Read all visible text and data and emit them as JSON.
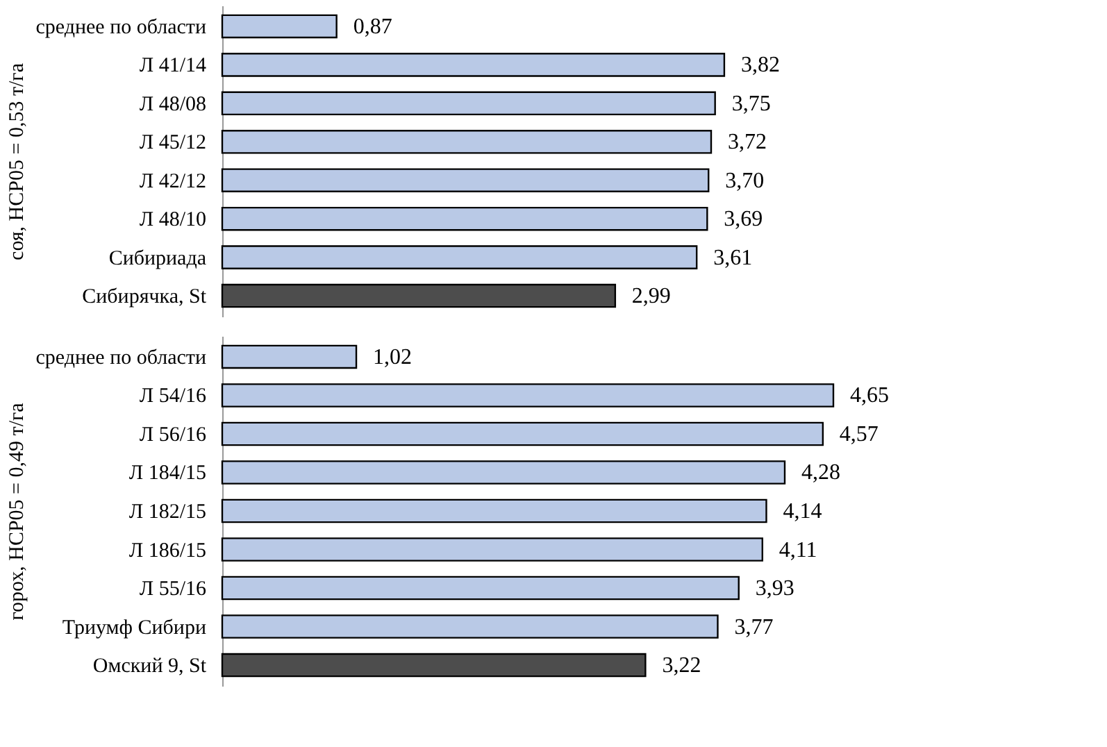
{
  "chart_data": [
    {
      "type": "bar",
      "orientation": "horizontal",
      "ylabel": "соя, НСР05 = 0,53 т/га",
      "categories": [
        "среднее по области",
        "Л  41/14",
        "Л 48/08",
        "Л 45/12",
        "Л 42/12",
        "Л 48/10",
        "Сибириада",
        "Сибирячка, St"
      ],
      "values": [
        0.87,
        3.82,
        3.75,
        3.72,
        3.7,
        3.69,
        3.61,
        2.99
      ],
      "value_labels": [
        "0,87",
        "3,82",
        "3,75",
        "3,72",
        "3,70",
        "3,69",
        "3,61",
        "2,99"
      ],
      "colors": [
        "#b9c9e6",
        "#b9c9e6",
        "#b9c9e6",
        "#b9c9e6",
        "#b9c9e6",
        "#b9c9e6",
        "#b9c9e6",
        "#4d4d4d"
      ],
      "tick_labels": "y"
    },
    {
      "type": "bar",
      "orientation": "horizontal",
      "ylabel": "горох, НСР05 = 0,49 т/га",
      "categories": [
        "среднее по области",
        "Л 54/16",
        "Л 56/16",
        "Л 184/15",
        "Л 182/15",
        "Л 186/15",
        "Л 55/16",
        "Триумф Сибири",
        "Омский 9, St"
      ],
      "values": [
        1.02,
        4.65,
        4.57,
        4.28,
        4.14,
        4.11,
        3.93,
        3.77,
        3.22
      ],
      "value_labels": [
        "1,02",
        "4,65",
        "4,57",
        "4,28",
        "4,14",
        "4,11",
        "3,93",
        "3,77",
        "3,22"
      ],
      "colors": [
        "#b9c9e6",
        "#b9c9e6",
        "#b9c9e6",
        "#b9c9e6",
        "#b9c9e6",
        "#b9c9e6",
        "#b9c9e6",
        "#b9c9e6",
        "#4d4d4d"
      ],
      "tick_labels": "y"
    }
  ]
}
